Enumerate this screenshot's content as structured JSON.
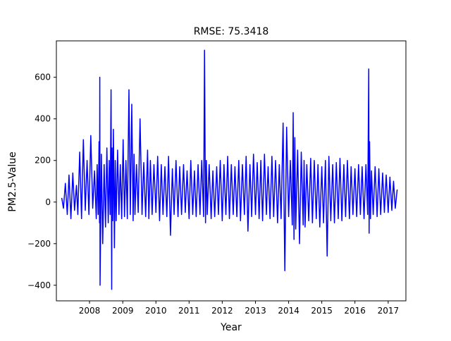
{
  "chart_data": {
    "type": "line",
    "title": "RMSE: 75.3418",
    "xlabel": "Year",
    "ylabel": "PM2.5-Value",
    "x_ticks": [
      "2008",
      "2009",
      "2010",
      "2011",
      "2012",
      "2013",
      "2014",
      "2015",
      "2016",
      "2017"
    ],
    "y_ticks": [
      "−400",
      "−200",
      "0",
      "200",
      "400",
      "600"
    ],
    "xlim": [
      "2007-01-01",
      "2017-07-15"
    ],
    "ylim": [
      -475,
      775
    ],
    "grid": false,
    "legend": "none",
    "series": [
      {
        "color": "#0000ff",
        "x": [
          "2007-03-01",
          "2007-03-20",
          "2007-04-10",
          "2007-05-01",
          "2007-05-20",
          "2007-06-10",
          "2007-07-01",
          "2007-07-20",
          "2007-08-10",
          "2007-08-25",
          "2007-09-15",
          "2007-10-05",
          "2007-10-25",
          "2007-11-15",
          "2007-12-05",
          "2007-12-25",
          "2008-01-15",
          "2008-02-05",
          "2008-02-25",
          "2008-03-15",
          "2008-03-25",
          "2008-04-05",
          "2008-04-15",
          "2008-04-20",
          "2008-04-23",
          "2008-04-26",
          "2008-05-10",
          "2008-05-25",
          "2008-06-10",
          "2008-06-25",
          "2008-07-10",
          "2008-07-25",
          "2008-08-05",
          "2008-08-15",
          "2008-08-25",
          "2008-09-01",
          "2008-09-05",
          "2008-09-12",
          "2008-09-20",
          "2008-10-01",
          "2008-10-10",
          "2008-10-20",
          "2008-11-05",
          "2008-11-20",
          "2008-12-05",
          "2008-12-20",
          "2009-01-05",
          "2009-01-20",
          "2009-02-05",
          "2009-02-20",
          "2009-03-10",
          "2009-03-25",
          "2009-04-10",
          "2009-04-25",
          "2009-05-05",
          "2009-05-15",
          "2009-06-01",
          "2009-06-20",
          "2009-07-10",
          "2009-08-01",
          "2009-08-20",
          "2009-09-10",
          "2009-10-01",
          "2009-10-15",
          "2009-11-01",
          "2009-11-20",
          "2009-12-10",
          "2010-01-01",
          "2010-01-20",
          "2010-02-10",
          "2010-03-01",
          "2010-03-20",
          "2010-04-10",
          "2010-05-01",
          "2010-05-20",
          "2010-06-10",
          "2010-07-01",
          "2010-07-20",
          "2010-08-10",
          "2010-09-01",
          "2010-09-20",
          "2010-10-10",
          "2010-11-01",
          "2010-11-20",
          "2010-12-10",
          "2011-01-01",
          "2011-01-20",
          "2011-02-10",
          "2011-03-01",
          "2011-03-20",
          "2011-04-10",
          "2011-05-01",
          "2011-05-20",
          "2011-06-10",
          "2011-06-20",
          "2011-07-01",
          "2011-07-10",
          "2011-07-20",
          "2011-08-10",
          "2011-09-01",
          "2011-09-20",
          "2011-10-10",
          "2011-11-01",
          "2011-11-20",
          "2011-12-10",
          "2012-01-01",
          "2012-01-20",
          "2012-02-10",
          "2012-03-01",
          "2012-03-20",
          "2012-04-10",
          "2012-05-01",
          "2012-05-20",
          "2012-06-10",
          "2012-07-01",
          "2012-07-20",
          "2012-08-10",
          "2012-09-01",
          "2012-09-20",
          "2012-10-10",
          "2012-11-01",
          "2012-11-20",
          "2012-12-10",
          "2013-01-01",
          "2013-01-20",
          "2013-02-10",
          "2013-03-01",
          "2013-03-20",
          "2013-04-10",
          "2013-05-01",
          "2013-05-20",
          "2013-06-10",
          "2013-07-01",
          "2013-07-20",
          "2013-08-10",
          "2013-09-01",
          "2013-09-20",
          "2013-10-10",
          "2013-11-01",
          "2013-11-20",
          "2013-12-10",
          "2014-01-01",
          "2014-01-20",
          "2014-02-10",
          "2014-02-20",
          "2014-03-01",
          "2014-03-10",
          "2014-03-20",
          "2014-04-10",
          "2014-05-01",
          "2014-05-20",
          "2014-06-10",
          "2014-06-20",
          "2014-07-01",
          "2014-07-20",
          "2014-08-10",
          "2014-09-01",
          "2014-09-20",
          "2014-10-10",
          "2014-11-01",
          "2014-11-20",
          "2014-12-10",
          "2015-01-01",
          "2015-01-20",
          "2015-02-10",
          "2015-03-01",
          "2015-03-20",
          "2015-04-10",
          "2015-05-01",
          "2015-05-20",
          "2015-06-10",
          "2015-07-01",
          "2015-07-20",
          "2015-08-10",
          "2015-09-01",
          "2015-09-20",
          "2015-10-10",
          "2015-11-01",
          "2015-11-20",
          "2015-12-10",
          "2016-01-01",
          "2016-01-20",
          "2016-02-10",
          "2016-03-01",
          "2016-03-20",
          "2016-04-10",
          "2016-05-01",
          "2016-05-20",
          "2016-06-01",
          "2016-06-05",
          "2016-06-10",
          "2016-06-20",
          "2016-07-01",
          "2016-07-20",
          "2016-08-10",
          "2016-09-01",
          "2016-09-20",
          "2016-10-10",
          "2016-11-01",
          "2016-11-20",
          "2016-12-10",
          "2017-01-01",
          "2017-01-20",
          "2017-02-10",
          "2017-03-01",
          "2017-03-20",
          "2017-04-10"
        ],
        "y": [
          20,
          -30,
          90,
          -60,
          130,
          -80,
          140,
          -40,
          80,
          -60,
          240,
          -80,
          300,
          -40,
          200,
          -60,
          320,
          -30,
          150,
          -80,
          180,
          -60,
          290,
          -100,
          600,
          -400,
          230,
          -200,
          180,
          -120,
          260,
          -100,
          200,
          -60,
          540,
          -420,
          260,
          -90,
          350,
          -220,
          200,
          -90,
          250,
          -60,
          180,
          -80,
          300,
          -70,
          200,
          -80,
          540,
          -60,
          470,
          -90,
          230,
          -60,
          180,
          -50,
          400,
          -60,
          190,
          -70,
          250,
          -80,
          200,
          -60,
          180,
          -50,
          220,
          -90,
          180,
          -60,
          170,
          -70,
          220,
          -160,
          160,
          -60,
          200,
          -70,
          170,
          -60,
          180,
          -50,
          150,
          -80,
          200,
          -60,
          150,
          -70,
          180,
          -60,
          200,
          -70,
          730,
          -100,
          200,
          -60,
          180,
          -80,
          150,
          -70,
          170,
          -60,
          200,
          -90,
          180,
          -60,
          220,
          -80,
          180,
          -60,
          170,
          -70,
          200,
          -90,
          180,
          -60,
          220,
          -140,
          180,
          -70,
          230,
          -60,
          190,
          -80,
          200,
          -90,
          230,
          -60,
          170,
          -80,
          220,
          -70,
          200,
          -100,
          180,
          -80,
          380,
          -330,
          360,
          -70,
          200,
          -110,
          430,
          -180,
          310,
          -130,
          250,
          -200,
          240,
          -110,
          200,
          -120,
          180,
          -90,
          210,
          -100,
          200,
          -80,
          180,
          -120,
          170,
          -100,
          200,
          -260,
          220,
          -90,
          180,
          -100,
          190,
          -80,
          210,
          -90,
          180,
          -70,
          200,
          -80,
          170,
          -60,
          160,
          -70,
          180,
          -60,
          170,
          -80,
          180,
          -60,
          640,
          -150,
          290,
          -80,
          150,
          -60,
          170,
          -70,
          160,
          -60,
          140,
          -50,
          130,
          -50,
          120,
          -40,
          100,
          -30,
          60
        ]
      }
    ]
  }
}
